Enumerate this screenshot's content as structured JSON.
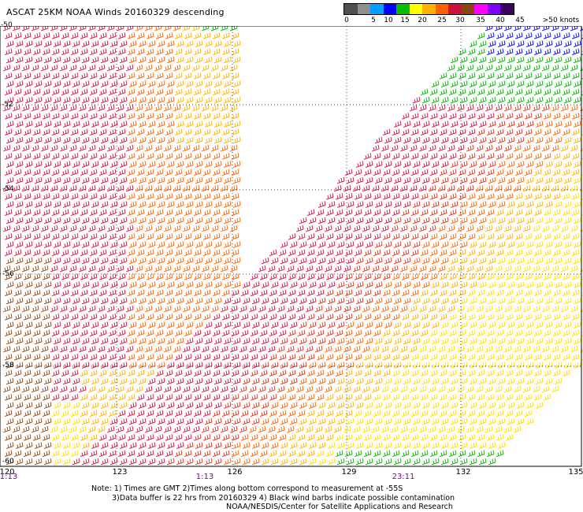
{
  "title": "ASCAT 25KM NOAA Winds 20160329 descending",
  "legend": {
    "colors": [
      "#505050",
      "#909090",
      "#00a0ff",
      "#0000ff",
      "#00c000",
      "#ffff00",
      "#ffb000",
      "#ff6000",
      "#d01040",
      "#8b4513",
      "#ff00ff",
      "#8000ff",
      "#400060"
    ],
    "labels": [
      "0",
      "5",
      "10",
      "15",
      "20",
      "25",
      "30",
      "35",
      "40",
      "45",
      ">50 knots"
    ]
  },
  "lat_labels": [
    "-50",
    "-52",
    "-54",
    "-56",
    "-58",
    "-60"
  ],
  "lon_labels": [
    "120",
    "123",
    "126",
    "129",
    "132",
    "135"
  ],
  "time_labels": [
    "1:13",
    "1:13",
    "23:11"
  ],
  "notes": {
    "line1": "Note: 1) Times are GMT 2)Times along bottom correspond to measurement at -55S",
    "line2": "3)Data buffer is 22 hrs from 20160329 4) Black wind barbs indicate possible contamination",
    "line3": "NOAA/NESDIS/Center for Satellite Applications and Research"
  }
}
